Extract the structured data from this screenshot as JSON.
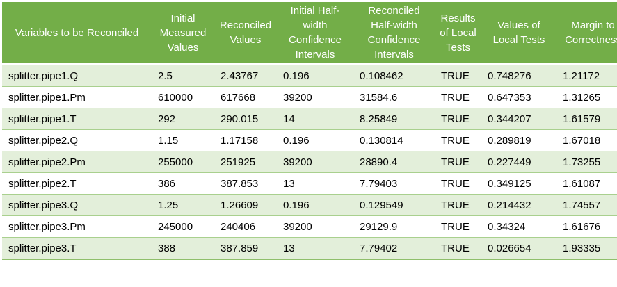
{
  "colors": {
    "header_bg": "#73AE48",
    "header_text": "#FFFFFF",
    "band_row_bg": "#E3EFDA",
    "row_border": "#A9D08E",
    "bottom_border": "#8FBF6B",
    "cell_text": "#000000"
  },
  "table": {
    "columns": [
      "Variables to be Reconciled",
      "Initial Measured Values",
      "Reconciled Values",
      "Initial Half-width Confidence Intervals",
      "Reconciled Half-width Confidence Intervals",
      "Results of Local Tests",
      "Values of Local Tests",
      "Margin to Correctness"
    ],
    "rows": [
      [
        "splitter.pipe1.Q",
        "2.5",
        "2.43767",
        "0.196",
        "0.108462",
        "TRUE",
        "0.748276",
        "1.21172"
      ],
      [
        "splitter.pipe1.Pm",
        "610000",
        "617668",
        "39200",
        "31584.6",
        "TRUE",
        "0.647353",
        "1.31265"
      ],
      [
        "splitter.pipe1.T",
        "292",
        "290.015",
        "14",
        "8.25849",
        "TRUE",
        "0.344207",
        "1.61579"
      ],
      [
        "splitter.pipe2.Q",
        "1.15",
        "1.17158",
        "0.196",
        "0.130814",
        "TRUE",
        "0.289819",
        "1.67018"
      ],
      [
        "splitter.pipe2.Pm",
        "255000",
        "251925",
        "39200",
        "28890.4",
        "TRUE",
        "0.227449",
        "1.73255"
      ],
      [
        "splitter.pipe2.T",
        "386",
        "387.853",
        "13",
        "7.79403",
        "TRUE",
        "0.349125",
        "1.61087"
      ],
      [
        "splitter.pipe3.Q",
        "1.25",
        "1.26609",
        "0.196",
        "0.129549",
        "TRUE",
        "0.214432",
        "1.74557"
      ],
      [
        "splitter.pipe3.Pm",
        "245000",
        "240406",
        "39200",
        "29129.9",
        "TRUE",
        "0.34324",
        "1.61676"
      ],
      [
        "splitter.pipe3.T",
        "388",
        "387.859",
        "13",
        "7.79402",
        "TRUE",
        "0.026654",
        "1.93335"
      ]
    ]
  }
}
